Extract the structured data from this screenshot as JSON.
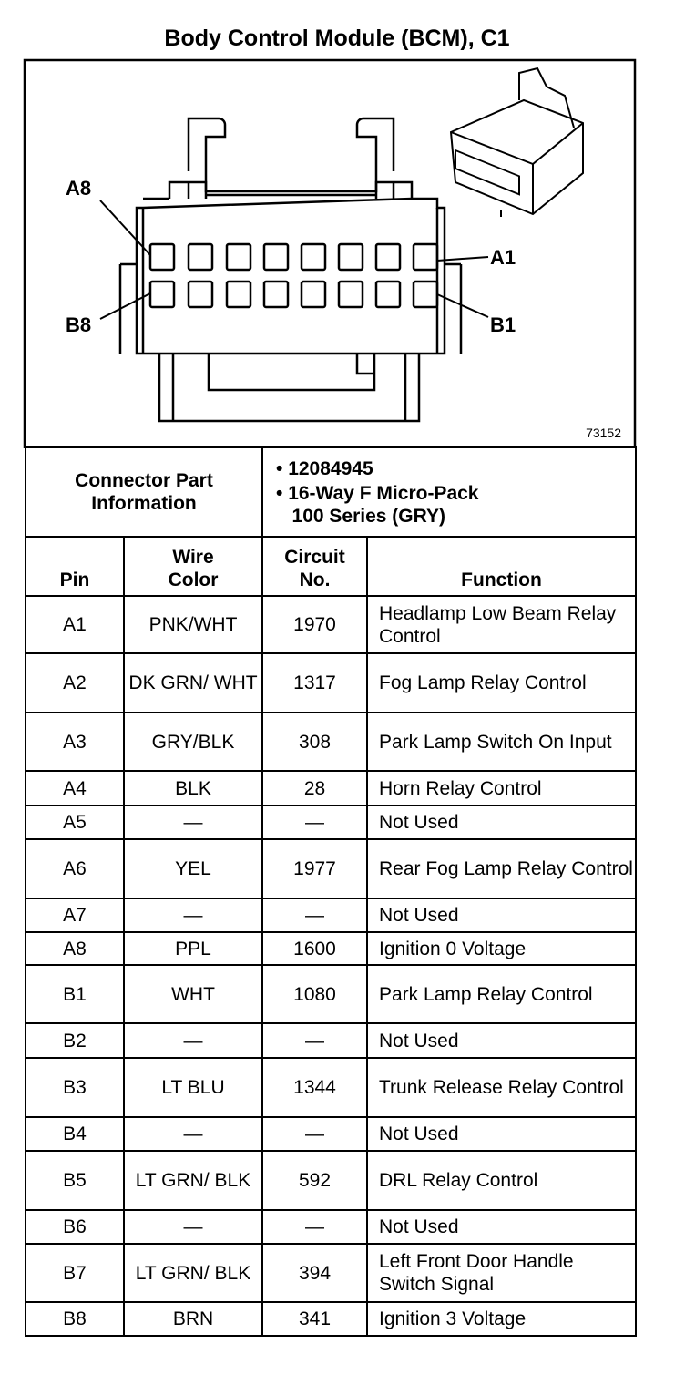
{
  "title": "Body Control Module (BCM), C1",
  "diagram": {
    "labels": {
      "a8": "A8",
      "a1": "A1",
      "b8": "B8",
      "b1": "B1"
    },
    "figure_number": "73152"
  },
  "connector_info": {
    "label": "Connector Part Information",
    "items": [
      "12084945",
      "16-Way F Micro-Pack",
      "100 Series (GRY)"
    ]
  },
  "table": {
    "headers": {
      "pin": "Pin",
      "wire_color_1": "Wire",
      "wire_color_2": "Color",
      "circuit_1": "Circuit",
      "circuit_2": "No.",
      "function": "Function"
    },
    "rows": [
      {
        "pin": "A1",
        "wire": "PNK/WHT",
        "circuit": "1970",
        "function": "Headlamp Low Beam Relay Control"
      },
      {
        "pin": "A2",
        "wire": "DK GRN/ WHT",
        "circuit": "1317",
        "function": "Fog Lamp Relay Control"
      },
      {
        "pin": "A3",
        "wire": "GRY/BLK",
        "circuit": "308",
        "function": "Park Lamp Switch On Input"
      },
      {
        "pin": "A4",
        "wire": "BLK",
        "circuit": "28",
        "function": "Horn Relay Control"
      },
      {
        "pin": "A5",
        "wire": "—",
        "circuit": "—",
        "function": "Not Used"
      },
      {
        "pin": "A6",
        "wire": "YEL",
        "circuit": "1977",
        "function": "Rear Fog Lamp Relay Control"
      },
      {
        "pin": "A7",
        "wire": "—",
        "circuit": "—",
        "function": "Not Used"
      },
      {
        "pin": "A8",
        "wire": "PPL",
        "circuit": "1600",
        "function": "Ignition 0 Voltage"
      },
      {
        "pin": "B1",
        "wire": "WHT",
        "circuit": "1080",
        "function": "Park Lamp Relay Control"
      },
      {
        "pin": "B2",
        "wire": "—",
        "circuit": "—",
        "function": "Not Used"
      },
      {
        "pin": "B3",
        "wire": "LT BLU",
        "circuit": "1344",
        "function": "Trunk Release Relay Control"
      },
      {
        "pin": "B4",
        "wire": "—",
        "circuit": "—",
        "function": "Not Used"
      },
      {
        "pin": "B5",
        "wire": "LT GRN/ BLK",
        "circuit": "592",
        "function": "DRL Relay Control"
      },
      {
        "pin": "B6",
        "wire": "—",
        "circuit": "—",
        "function": "Not Used"
      },
      {
        "pin": "B7",
        "wire": "LT GRN/ BLK",
        "circuit": "394",
        "function": "Left Front Door Handle Switch Signal"
      },
      {
        "pin": "B8",
        "wire": "BRN",
        "circuit": "341",
        "function": "Ignition 3 Voltage"
      }
    ]
  }
}
